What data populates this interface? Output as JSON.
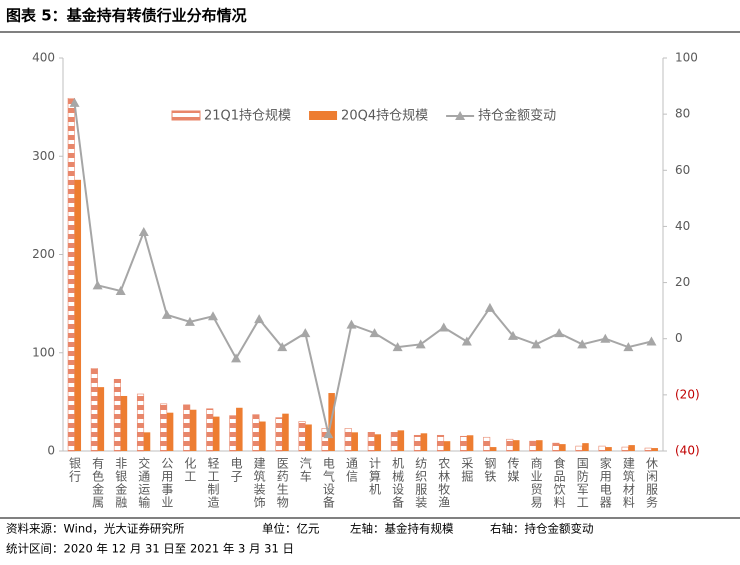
{
  "title": "图表 5：基金持有转债行业分布情况",
  "chart_data": {
    "type": "bar-line",
    "categories": [
      "银行",
      "有色金属",
      "非银金融",
      "交通运输",
      "公用事业",
      "化工",
      "轻工制造",
      "电子",
      "建筑装饰",
      "医药生物",
      "汽车",
      "电气设备",
      "通信",
      "计算机",
      "机械设备",
      "纺织服装",
      "农林牧渔",
      "采掘",
      "钢铁",
      "传媒",
      "商业贸易",
      "食品饮料",
      "国防军工",
      "家用电器",
      "建筑材料",
      "休闲服务"
    ],
    "series": [
      {
        "name": "21Q1持仓规模",
        "type": "bar",
        "color": "#e8866a",
        "hatched": true,
        "values": [
          359,
          84,
          73,
          58,
          48,
          47,
          43,
          36,
          37,
          34,
          30,
          23,
          23,
          19,
          19,
          16,
          16,
          15,
          14,
          12,
          10,
          8,
          5,
          5,
          4,
          3
        ]
      },
      {
        "name": "20Q4持仓规模",
        "type": "bar",
        "color": "#ed7d31",
        "values": [
          276,
          65,
          56,
          19,
          39,
          42,
          35,
          44,
          30,
          38,
          27,
          59,
          19,
          17,
          21,
          18,
          10,
          16,
          4,
          11,
          11,
          7,
          8,
          4,
          6,
          3
        ]
      },
      {
        "name": "持仓金额变动",
        "type": "line",
        "axis": "y2",
        "color": "#a6a6a6",
        "values": [
          84,
          19,
          17,
          38,
          8.5,
          6,
          8,
          -7,
          7,
          -3,
          2,
          -34,
          5,
          2,
          -3,
          -2,
          4,
          -1,
          11,
          1,
          -2,
          2,
          -2,
          0,
          -3,
          -1
        ]
      }
    ],
    "ylim": [
      0,
      400
    ],
    "yticks": [
      0,
      100,
      200,
      300,
      400
    ],
    "y2lim": [
      -40,
      100
    ],
    "y2ticks": [
      {
        "value": -40,
        "label": "(40)"
      },
      {
        "value": -20,
        "label": "(20)"
      },
      0,
      20,
      40,
      60,
      80,
      100
    ]
  },
  "footer": {
    "source": "资料来源：Wind，光大证券研究所",
    "unit": "单位：亿元",
    "left_axis": "左轴：基金持有规模",
    "right_axis": "右轴：持仓金额变动",
    "period": "统计区间：2020 年 12 月 31 日至 2021 年 3 月 31 日"
  }
}
